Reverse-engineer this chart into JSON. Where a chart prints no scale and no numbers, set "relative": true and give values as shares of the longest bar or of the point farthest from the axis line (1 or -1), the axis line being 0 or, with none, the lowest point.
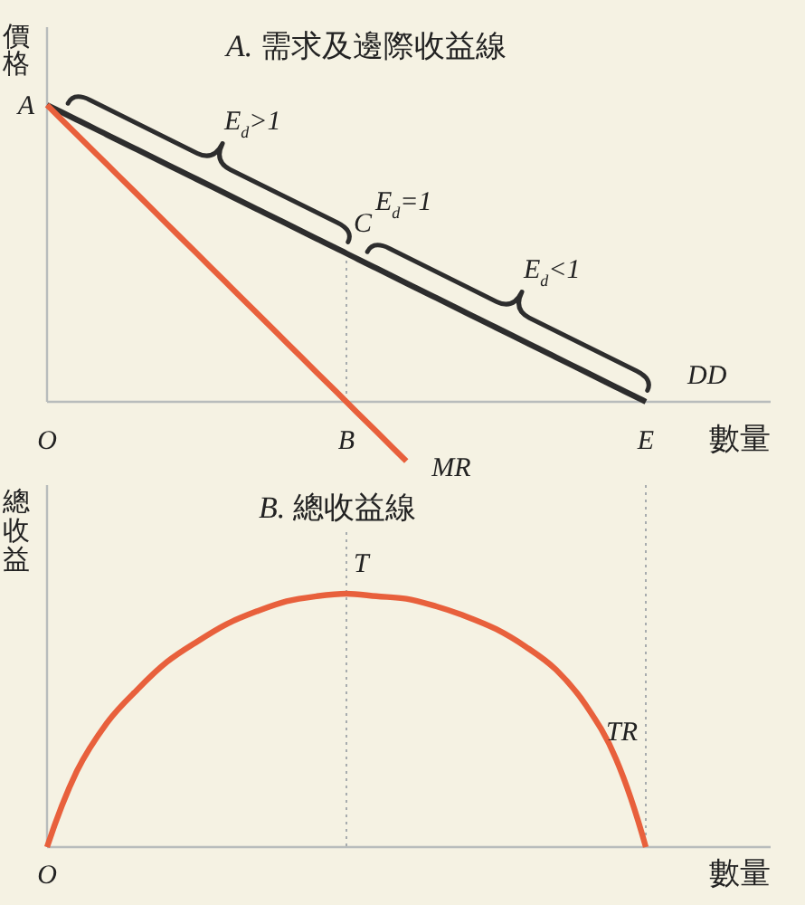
{
  "chart_data": [
    {
      "type": "line",
      "title": "A. 需求及邊際收益線",
      "xlabel": "數量",
      "ylabel": "價格",
      "relative": true,
      "tick_labels": "x",
      "categories": [
        "O",
        null,
        null,
        null,
        null,
        null,
        null,
        null,
        null,
        null,
        "B",
        null,
        null,
        null,
        null,
        null,
        null,
        null,
        null,
        null,
        "E"
      ],
      "series": [
        {
          "name": "DD",
          "color": "#2d2d2d",
          "values": [
            1,
            0.95,
            0.9,
            0.85,
            0.8,
            0.75,
            0.7,
            0.65,
            0.6,
            0.55,
            0.5,
            0.45,
            0.4,
            0.35,
            0.3,
            0.25,
            0.2,
            0.15,
            0.1,
            0.05,
            0
          ]
        },
        {
          "name": "MR",
          "color": "#e8603c",
          "values": [
            1,
            0.9,
            0.8,
            0.7,
            0.6,
            0.5,
            0.4,
            0.3,
            0.2,
            0.1,
            0,
            -0.1,
            -0.2,
            null,
            null,
            null,
            null,
            null,
            null,
            null,
            null
          ]
        }
      ],
      "ref_lines": [
        {
          "axis": "x",
          "value": "B",
          "color": "#a7acae",
          "line_style": "dotted"
        }
      ],
      "annotations": [
        {
          "text": "A",
          "x": "O",
          "y": 1
        },
        "E$_{d}$>1",
        {
          "text": "C",
          "x": "B",
          "y": 0.5
        },
        {
          "text": "E$_{d}$=1",
          "x": "B",
          "y": 0.5
        },
        "E$_{d}$<1"
      ]
    },
    {
      "type": "line",
      "title": "B. 總收益線",
      "xlabel": "數量",
      "ylabel": "總收益",
      "relative": true,
      "tick_labels": false,
      "categories": [
        null,
        null,
        null,
        null,
        null,
        null,
        null,
        null,
        null,
        null,
        null,
        null,
        null,
        null,
        null,
        null,
        null,
        null,
        null,
        null,
        null
      ],
      "series": [
        {
          "name": "TR",
          "color": "#e8603c",
          "values": [
            0,
            0.3,
            0.49,
            0.62,
            0.73,
            0.81,
            0.88,
            0.93,
            0.97,
            0.99,
            1,
            0.99,
            0.98,
            0.95,
            0.91,
            0.86,
            0.79,
            0.7,
            0.56,
            0.35,
            0
          ]
        }
      ],
      "annotations": [
        {
          "text": "T",
          "y": 1
        },
        "O"
      ]
    }
  ]
}
